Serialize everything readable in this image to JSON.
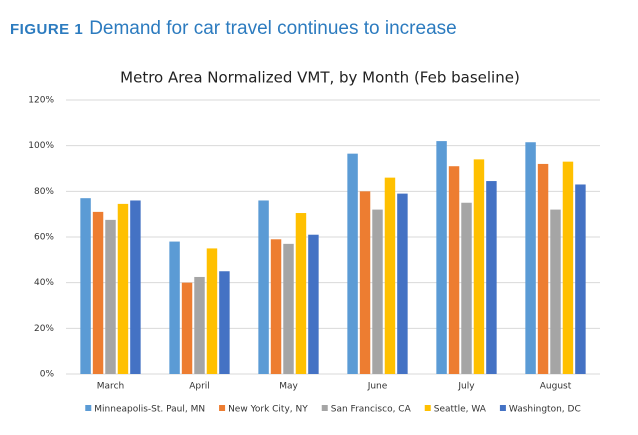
{
  "figure": {
    "label": "FIGURE 1",
    "caption": "Demand for car travel continues to increase"
  },
  "chart_data": {
    "type": "bar",
    "title": "Metro Area Normalized VMT, by Month (Feb baseline)",
    "categories": [
      "March",
      "April",
      "May",
      "June",
      "July",
      "August"
    ],
    "series": [
      {
        "name": "Minneapolis-St. Paul, MN",
        "color": "#5b9bd5",
        "values": [
          77,
          58,
          76,
          96.5,
          102,
          101.5
        ]
      },
      {
        "name": "New York City, NY",
        "color": "#ed7d31",
        "values": [
          71,
          40,
          59,
          80,
          91,
          92
        ]
      },
      {
        "name": "San Francisco, CA",
        "color": "#a5a5a5",
        "values": [
          67.5,
          42.5,
          57,
          72,
          75,
          72
        ]
      },
      {
        "name": "Seattle, WA",
        "color": "#ffc000",
        "values": [
          74.5,
          55,
          70.5,
          86,
          94,
          93
        ]
      },
      {
        "name": "Washington, DC",
        "color": "#4472c4",
        "values": [
          76,
          45,
          61,
          79,
          84.5,
          83
        ]
      }
    ],
    "ylim": [
      0,
      120
    ],
    "yticks": [
      {
        "value": 0,
        "label": "0%"
      },
      {
        "value": 20,
        "label": "20%"
      },
      {
        "value": 40,
        "label": "40%"
      },
      {
        "value": 60,
        "label": "60%"
      },
      {
        "value": 80,
        "label": "80%"
      },
      {
        "value": 100,
        "label": "100%"
      },
      {
        "value": 120,
        "label": "120%"
      }
    ],
    "grid": true,
    "legend": "bottom"
  }
}
